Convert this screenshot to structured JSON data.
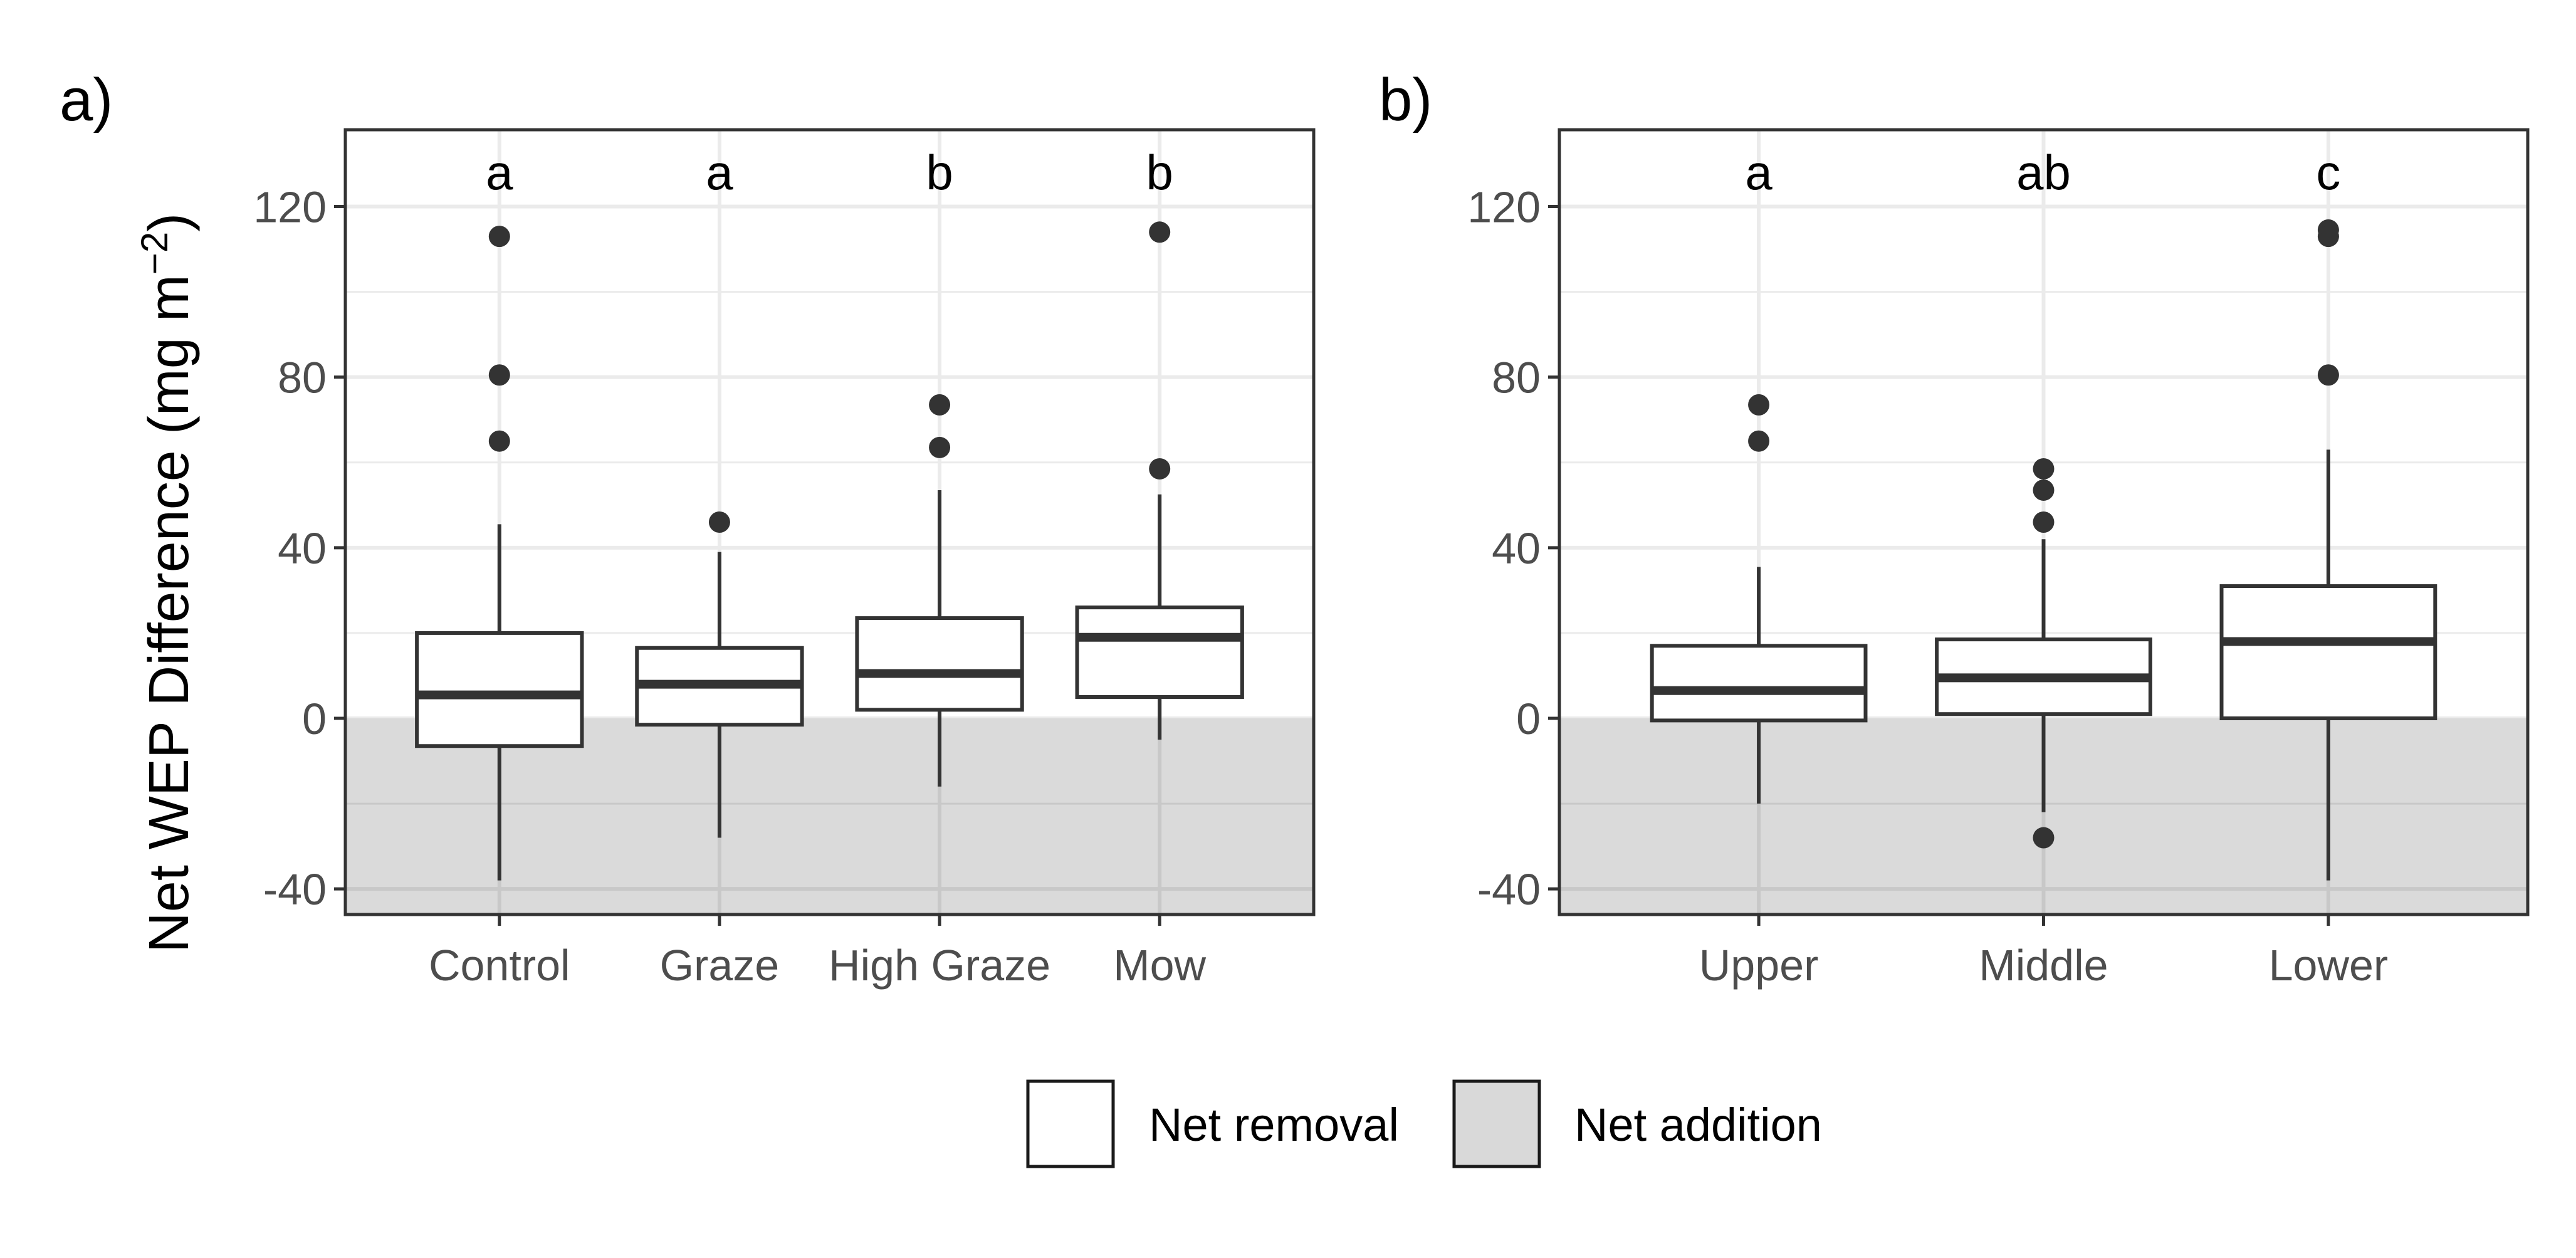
{
  "chart_data": [
    {
      "type": "box",
      "panel_label": "a)",
      "ylabel": "Net WEP Difference (mg m",
      "ylabel_superscript": "−2",
      "ylabel_close": ")",
      "ylim": [
        -46,
        138
      ],
      "yticks": [
        -40,
        0,
        40,
        80,
        120
      ],
      "ytick_labels": [
        "-40",
        "0",
        "40",
        "80",
        "120"
      ],
      "grid": true,
      "shaded_region": {
        "from": -46,
        "to": 0,
        "color": "#d9d9d9"
      },
      "categories": [
        "Control",
        "Graze",
        "High Graze",
        "Mow"
      ],
      "significance_letters": [
        "a",
        "a",
        "b",
        "b"
      ],
      "boxes": [
        {
          "whisker_low": -38,
          "q1": -6.5,
          "median": 5.5,
          "q3": 20,
          "whisker_high": 45.5,
          "outliers": [
            113,
            80.5,
            65
          ]
        },
        {
          "whisker_low": -28,
          "q1": -1.5,
          "median": 8,
          "q3": 16.5,
          "whisker_high": 39,
          "outliers": [
            46
          ]
        },
        {
          "whisker_low": -16,
          "q1": 2,
          "median": 10.5,
          "q3": 23.5,
          "whisker_high": 53.5,
          "outliers": [
            73.5,
            63.5
          ]
        },
        {
          "whisker_low": -5,
          "q1": 5,
          "median": 19,
          "q3": 26,
          "whisker_high": 52.5,
          "outliers": [
            114,
            58.5
          ]
        }
      ]
    },
    {
      "type": "box",
      "panel_label": "b)",
      "ylim": [
        -46,
        138
      ],
      "yticks": [
        -40,
        0,
        40,
        80,
        120
      ],
      "ytick_labels": [
        "-40",
        "0",
        "40",
        "80",
        "120"
      ],
      "grid": true,
      "shaded_region": {
        "from": -46,
        "to": 0,
        "color": "#d9d9d9"
      },
      "categories": [
        "Upper",
        "Middle",
        "Lower"
      ],
      "significance_letters": [
        "a",
        "ab",
        "c"
      ],
      "boxes": [
        {
          "whisker_low": -20,
          "q1": -0.5,
          "median": 6.5,
          "q3": 17,
          "whisker_high": 35.5,
          "outliers": [
            73.5,
            65
          ]
        },
        {
          "whisker_low": -22,
          "q1": 1,
          "median": 9.5,
          "q3": 18.5,
          "whisker_high": 42,
          "outliers": [
            58.5,
            53.5,
            46,
            -28
          ]
        },
        {
          "whisker_low": -38,
          "q1": 0,
          "median": 18,
          "q3": 31,
          "whisker_high": 63,
          "outliers": [
            114.5,
            113,
            80.5
          ]
        }
      ]
    }
  ],
  "legend": {
    "position": "bottom",
    "items": [
      {
        "label": "Net removal",
        "fill": "#ffffff"
      },
      {
        "label": "Net addition",
        "fill": "#d9d9d9"
      }
    ]
  },
  "colors": {
    "box_line": "#333333",
    "panel_border": "#333333",
    "grid_major": "#ebebeb",
    "shade": "#d9d9d9",
    "shade_grid": "#c8c8c8"
  }
}
